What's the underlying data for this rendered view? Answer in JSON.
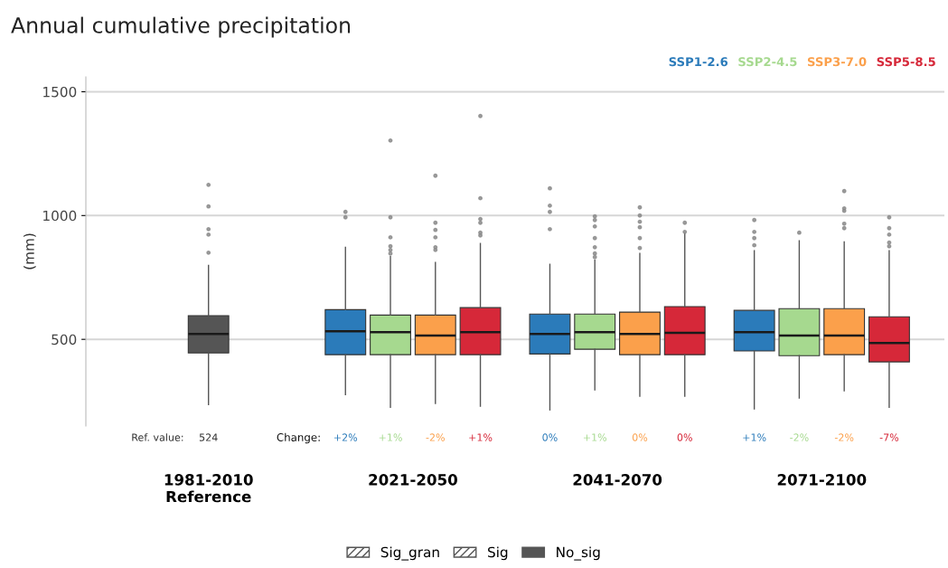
{
  "chart_data": {
    "type": "box",
    "title": "Annual cumulative precipitation",
    "ylabel": "(mm)",
    "categories": [
      "1981-2010\nReference",
      "2021-2050",
      "2041-2070",
      "2071-2100"
    ],
    "ylim": [
      150,
      1560
    ],
    "yticks": [
      500,
      1000,
      1500
    ],
    "grid": "y",
    "legend": "top right",
    "annotations": [
      "Ref. value:",
      "Change:",
      "Sig_gran",
      "Sig",
      "No_sig"
    ],
    "series": [
      {
        "color": "#555555",
        "value_labels": [
          "524",
          null,
          null,
          null
        ],
        "boxes": [
          {
            "low": 237,
            "q1": 445,
            "median": 522,
            "q3": 595,
            "high": 799,
            "outliers": [
              1124,
              1037,
              945,
              923,
              850
            ]
          },
          null,
          null,
          null
        ]
      },
      {
        "name": "SSP1-2.6",
        "color": "#2b7bba",
        "value_labels": [
          null,
          "+2%",
          "0%",
          "+1%"
        ],
        "boxes": [
          null,
          {
            "low": 277,
            "q1": 438,
            "median": 533,
            "q3": 620,
            "high": 872,
            "outliers": [
              1015,
              993
            ]
          },
          {
            "low": 215,
            "q1": 441,
            "median": 522,
            "q3": 602,
            "high": 803,
            "outliers": [
              1110,
              1040,
              1015,
              945
            ]
          },
          {
            "low": 219,
            "q1": 453,
            "median": 529,
            "q3": 617,
            "high": 858,
            "outliers": [
              982,
              934,
              909,
              880
            ]
          }
        ]
      },
      {
        "name": "SSP2-4.5",
        "color": "#a6d98f",
        "value_labels": [
          null,
          "+1%",
          "+1%",
          "-2%"
        ],
        "boxes": [
          null,
          {
            "low": 226,
            "q1": 438,
            "median": 529,
            "q3": 598,
            "high": 835,
            "outliers": [
              1303,
              993,
              912,
              876,
              861,
              847
            ]
          },
          {
            "low": 296,
            "q1": 460,
            "median": 529,
            "q3": 602,
            "high": 820,
            "outliers": [
              997,
              982,
              956,
              909,
              872,
              847,
              832
            ]
          },
          {
            "low": 263,
            "q1": 434,
            "median": 515,
            "q3": 624,
            "high": 898,
            "outliers": [
              931
            ]
          }
        ]
      },
      {
        "name": "SSP3-7.0",
        "color": "#fba04b",
        "value_labels": [
          null,
          "-2%",
          "0%",
          "-2%"
        ],
        "boxes": [
          null,
          {
            "low": 241,
            "q1": 438,
            "median": 515,
            "q3": 598,
            "high": 810,
            "outliers": [
              1161,
              971,
              942,
              912,
              872,
              861
            ]
          },
          {
            "low": 270,
            "q1": 438,
            "median": 522,
            "q3": 610,
            "high": 847,
            "outliers": [
              1033,
              1000,
              975,
              953,
              909,
              869
            ]
          },
          {
            "low": 292,
            "q1": 438,
            "median": 515,
            "q3": 624,
            "high": 894,
            "outliers": [
              1099,
              1029,
              1019,
              967,
              949
            ]
          }
        ]
      },
      {
        "name": "SSP5-8.5",
        "color": "#d62839",
        "value_labels": [
          null,
          "+1%",
          "0%",
          "-7%"
        ],
        "boxes": [
          null,
          {
            "low": 230,
            "q1": 438,
            "median": 529,
            "q3": 628,
            "high": 887,
            "outliers": [
              1402,
              1070,
              986,
              971,
              931,
              920
            ]
          },
          {
            "low": 270,
            "q1": 438,
            "median": 526,
            "q3": 632,
            "high": 927,
            "outliers": [
              971,
              934
            ]
          },
          {
            "low": 226,
            "q1": 409,
            "median": 485,
            "q3": 591,
            "high": 858,
            "outliers": [
              993,
              949,
              923,
              891,
              876
            ]
          }
        ]
      }
    ]
  }
}
